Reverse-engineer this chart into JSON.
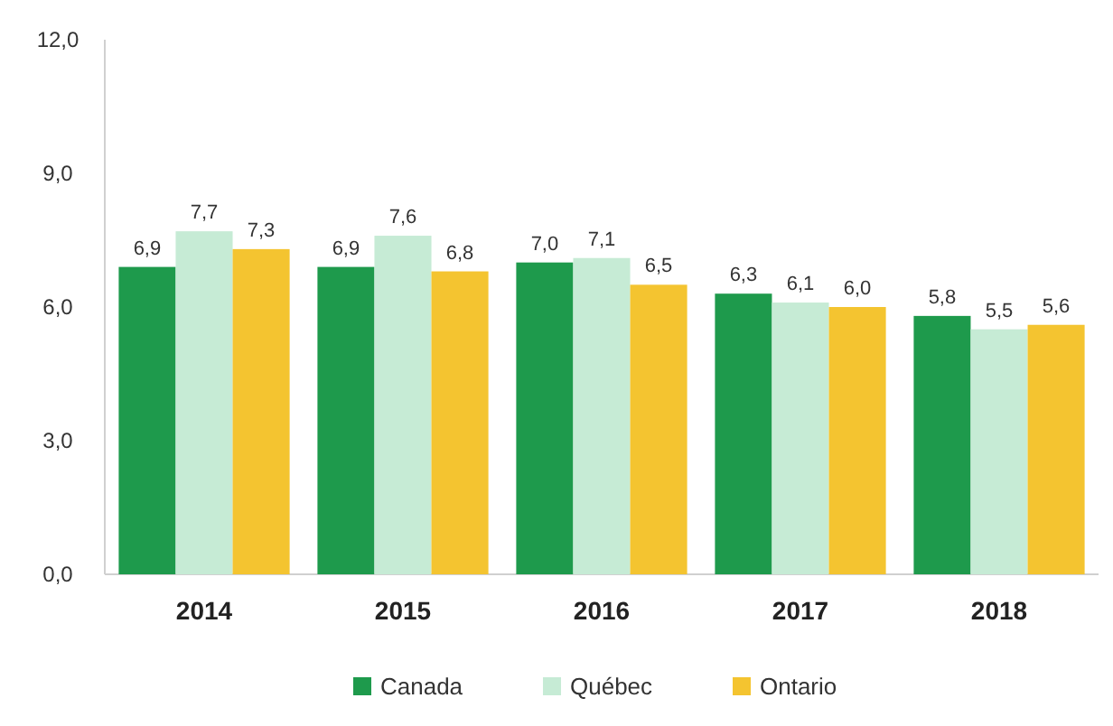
{
  "chart_data": {
    "type": "bar",
    "categories": [
      "2014",
      "2015",
      "2016",
      "2017",
      "2018"
    ],
    "series": [
      {
        "name": "Canada",
        "color": "#1e9a4c",
        "values": [
          6.9,
          6.9,
          7.0,
          6.3,
          5.8
        ],
        "value_labels": [
          "6,9",
          "6,9",
          "7,0",
          "6,3",
          "5,8"
        ]
      },
      {
        "name": "Québec",
        "color": "#c6ebd5",
        "values": [
          7.7,
          7.6,
          7.1,
          6.1,
          5.5
        ],
        "value_labels": [
          "7,7",
          "7,6",
          "7,1",
          "6,1",
          "5,5"
        ]
      },
      {
        "name": "Ontario",
        "color": "#f4c430",
        "values": [
          7.3,
          6.8,
          6.5,
          6.0,
          5.6
        ],
        "value_labels": [
          "7,3",
          "6,8",
          "6,5",
          "6,0",
          "5,6"
        ]
      }
    ],
    "ylim": [
      0,
      12
    ],
    "yticks": [
      {
        "value": 0,
        "label": "0,0"
      },
      {
        "value": 3,
        "label": "3,0"
      },
      {
        "value": 6,
        "label": "6,0"
      },
      {
        "value": 9,
        "label": "9,0"
      },
      {
        "value": 12,
        "label": "12,0"
      }
    ],
    "grid": false,
    "legend": "bottom"
  }
}
